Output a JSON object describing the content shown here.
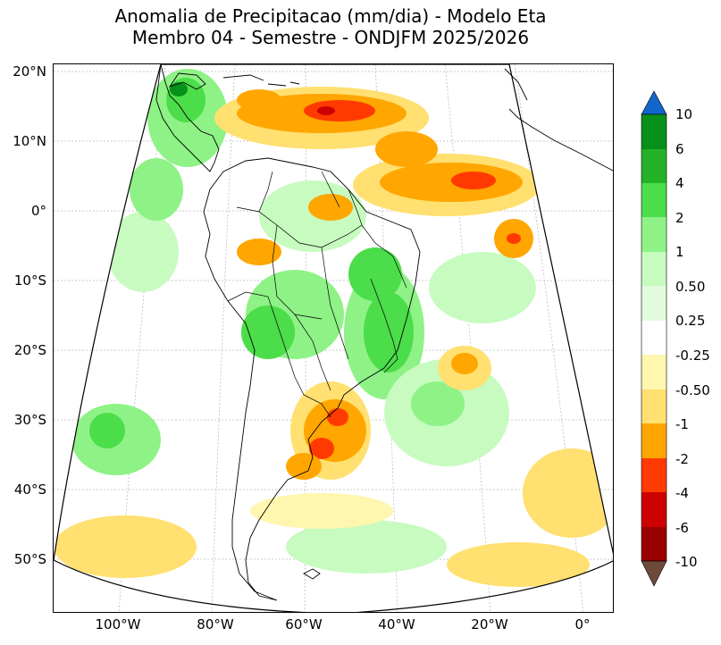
{
  "title": {
    "line1": "Anomalia de Precipitacao (mm/dia) - Modelo Eta",
    "line2": "Membro 04 - Semestre - ONDJFM 2025/2026"
  },
  "axes": {
    "lat_labels": [
      "20°N",
      "10°N",
      "0°",
      "10°S",
      "20°S",
      "30°S",
      "40°S",
      "50°S"
    ],
    "lon_labels": [
      "100°W",
      "80°W",
      "60°W",
      "40°W",
      "20°W",
      "0°"
    ]
  },
  "colorbar": {
    "labels": [
      "10",
      "6",
      "4",
      "2",
      "1",
      "0.50",
      "0.25",
      "-0.25",
      "-0.50",
      "-1",
      "-2",
      "-4",
      "-6",
      "-10"
    ],
    "colors": [
      "#1166cc",
      "#07901a",
      "#23b228",
      "#4cdd4a",
      "#8ef286",
      "#c7fbc0",
      "#e2fbdc",
      "#ffffff",
      "#fff6b0",
      "#ffe070",
      "#ffa600",
      "#ff3a00",
      "#cc0000",
      "#990000",
      "#6e4a3a"
    ]
  },
  "legend": {
    "positive_colors": [
      "#e2fbdc",
      "#c7fbc0",
      "#8ef286",
      "#4cdd4a",
      "#23b228",
      "#07901a"
    ],
    "negative_colors": [
      "#fff6b0",
      "#ffe070",
      "#ffa600",
      "#ff3a00",
      "#cc0000"
    ]
  }
}
